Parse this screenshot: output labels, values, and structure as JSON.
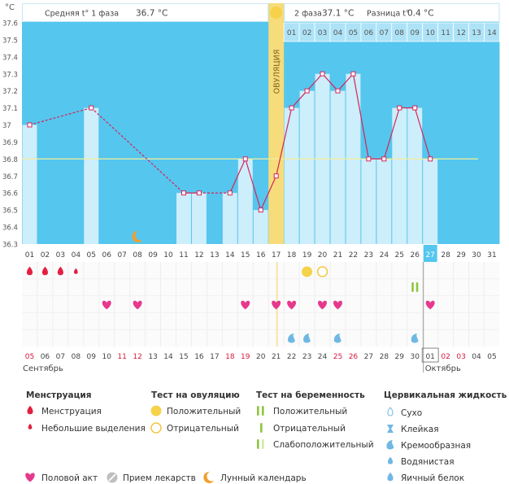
{
  "chart_data": {
    "type": "line",
    "unit": "°C",
    "ylim": [
      36.3,
      37.6
    ],
    "yticks": [
      "37.6",
      "37.5",
      "37.4",
      "37.3",
      "37.2",
      "37.1",
      "37",
      "36.9",
      "36.8",
      "36.7",
      "36.6",
      "36.5",
      "36.4",
      "36.3"
    ],
    "cycle_days": [
      "01",
      "02",
      "03",
      "04",
      "05",
      "06",
      "07",
      "08",
      "09",
      "10",
      "11",
      "12",
      "13",
      "14",
      "15",
      "16",
      "17",
      "18",
      "19",
      "20",
      "21",
      "22",
      "23",
      "24",
      "25",
      "26",
      "27",
      "28",
      "29",
      "30",
      "31"
    ],
    "phase2_days": [
      "01",
      "02",
      "03",
      "04",
      "05",
      "06",
      "07",
      "08",
      "09",
      "10",
      "11",
      "12",
      "13",
      "14"
    ],
    "temperatures": [
      {
        "day": 1,
        "t": 37.0
      },
      {
        "day": 5,
        "t": 37.1
      },
      {
        "day": 11,
        "t": 36.6
      },
      {
        "day": 12,
        "t": 36.6
      },
      {
        "day": 14,
        "t": 36.6
      },
      {
        "day": 15,
        "t": 36.8
      },
      {
        "day": 16,
        "t": 36.5
      },
      {
        "day": 17,
        "t": 36.7
      },
      {
        "day": 18,
        "t": 37.1
      },
      {
        "day": 19,
        "t": 37.2
      },
      {
        "day": 20,
        "t": 37.3
      },
      {
        "day": 21,
        "t": 37.2
      },
      {
        "day": 22,
        "t": 37.3
      },
      {
        "day": 23,
        "t": 36.8
      },
      {
        "day": 24,
        "t": 36.8
      },
      {
        "day": 25,
        "t": 37.1
      },
      {
        "day": 26,
        "t": 37.1
      },
      {
        "day": 27,
        "t": 36.8
      }
    ],
    "coverline": 36.8,
    "ovulation_day": 17,
    "ovulation_label": "ОВУЛЯЦИЯ",
    "current_day": 27,
    "moon_day": 8,
    "phase1_label": "Средняя t° 1 фаза",
    "phase1_value": "36.7 °C",
    "phase2_label": "2 фаза",
    "phase2_value": "37.1 °C",
    "diff_label": "Разница t°",
    "diff_value": "0.4 °C",
    "menstruation": [
      {
        "day": 1,
        "type": "full"
      },
      {
        "day": 2,
        "type": "full"
      },
      {
        "day": 3,
        "type": "full"
      },
      {
        "day": 4,
        "type": "spotting"
      }
    ],
    "ovulation_tests": [
      {
        "day": 19,
        "type": "positive"
      },
      {
        "day": 20,
        "type": "negative"
      }
    ],
    "pregnancy_tests": [
      {
        "day": 26,
        "type": "positive"
      }
    ],
    "intercourse_days": [
      6,
      8,
      15,
      17,
      18,
      20,
      21,
      27
    ],
    "cervical_fluid": [
      {
        "day": 18,
        "type": "creamy"
      },
      {
        "day": 19,
        "type": "creamy"
      },
      {
        "day": 21,
        "type": "creamy"
      },
      {
        "day": 26,
        "type": "creamy"
      }
    ],
    "dates": [
      {
        "d": "05",
        "red": true
      },
      {
        "d": "06",
        "red": false
      },
      {
        "d": "07",
        "red": false
      },
      {
        "d": "08",
        "red": false
      },
      {
        "d": "09",
        "red": false
      },
      {
        "d": "10",
        "red": false
      },
      {
        "d": "11",
        "red": true
      },
      {
        "d": "12",
        "red": true
      },
      {
        "d": "13",
        "red": false
      },
      {
        "d": "14",
        "red": false
      },
      {
        "d": "15",
        "red": false
      },
      {
        "d": "16",
        "red": false
      },
      {
        "d": "17",
        "red": false
      },
      {
        "d": "18",
        "red": true
      },
      {
        "d": "19",
        "red": true
      },
      {
        "d": "20",
        "red": false
      },
      {
        "d": "21",
        "red": false
      },
      {
        "d": "22",
        "red": false
      },
      {
        "d": "23",
        "red": false
      },
      {
        "d": "24",
        "red": false
      },
      {
        "d": "25",
        "red": true
      },
      {
        "d": "26",
        "red": true
      },
      {
        "d": "27",
        "red": false
      },
      {
        "d": "28",
        "red": false
      },
      {
        "d": "29",
        "red": false
      },
      {
        "d": "30",
        "red": false
      },
      {
        "d": "01",
        "red": false
      },
      {
        "d": "02",
        "red": true
      },
      {
        "d": "03",
        "red": true
      },
      {
        "d": "04",
        "red": false
      },
      {
        "d": "05",
        "red": false
      }
    ],
    "month_start": "Сентябрь",
    "month_end": "Октябрь"
  },
  "legend": {
    "menstruation": {
      "title": "Менструация",
      "items": [
        "Менструация",
        "Небольшие выделения"
      ]
    },
    "ovulation_test": {
      "title": "Тест на овуляцию",
      "items": [
        "Положительный",
        "Отрицательный"
      ]
    },
    "pregnancy_test": {
      "title": "Тест на беременность",
      "items": [
        "Положительный",
        "Отрицательный",
        "Слабоположительный"
      ]
    },
    "cervical_fluid": {
      "title": "Цервикальная жидкость",
      "items": [
        "Сухо",
        "Клейкая",
        "Кремообразная",
        "Водянистая",
        "Яичный белок"
      ]
    },
    "bottom": [
      "Половой акт",
      "Прием лекарств",
      "Лунный календарь"
    ]
  },
  "colors": {
    "bg_blue": "#55c6ee",
    "bar": "#cdeefb",
    "line": "#d6245a",
    "ovulation": "#f6dc7a",
    "red": "#e3203f",
    "pink": "#e6398c",
    "green": "#8dc63f",
    "drop": "#6fb8e3",
    "orange": "#f0a032"
  }
}
